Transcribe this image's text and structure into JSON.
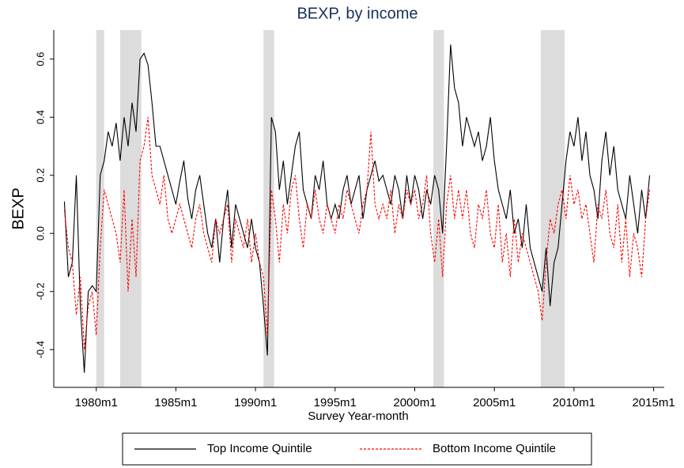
{
  "chart_data": {
    "type": "line",
    "title": "BEXP, by income",
    "x_label": "Survey Year-month",
    "y_label": "BEXP",
    "x": [
      "1978m1",
      "1978m4",
      "1978m7",
      "1978m10",
      "1979m1",
      "1979m4",
      "1979m7",
      "1979m10",
      "1980m1",
      "1980m4",
      "1980m7",
      "1980m10",
      "1981m1",
      "1981m4",
      "1981m7",
      "1981m10",
      "1982m1",
      "1982m4",
      "1982m7",
      "1982m10",
      "1983m1",
      "1983m4",
      "1983m7",
      "1983m10",
      "1984m1",
      "1984m4",
      "1984m7",
      "1984m10",
      "1985m1",
      "1985m4",
      "1985m7",
      "1985m10",
      "1986m1",
      "1986m4",
      "1986m7",
      "1986m10",
      "1987m1",
      "1987m4",
      "1987m7",
      "1987m10",
      "1988m1",
      "1988m4",
      "1988m7",
      "1988m10",
      "1989m1",
      "1989m4",
      "1989m7",
      "1989m10",
      "1990m1",
      "1990m4",
      "1990m7",
      "1990m10",
      "1991m1",
      "1991m4",
      "1991m7",
      "1991m10",
      "1992m1",
      "1992m4",
      "1992m7",
      "1992m10",
      "1993m1",
      "1993m4",
      "1993m7",
      "1993m10",
      "1994m1",
      "1994m4",
      "1994m7",
      "1994m10",
      "1995m1",
      "1995m4",
      "1995m7",
      "1995m10",
      "1996m1",
      "1996m4",
      "1996m7",
      "1996m10",
      "1997m1",
      "1997m4",
      "1997m7",
      "1997m10",
      "1998m1",
      "1998m4",
      "1998m7",
      "1998m10",
      "1999m1",
      "1999m4",
      "1999m7",
      "1999m10",
      "2000m1",
      "2000m4",
      "2000m7",
      "2000m10",
      "2001m1",
      "2001m4",
      "2001m7",
      "2001m10",
      "2002m1",
      "2002m4",
      "2002m7",
      "2002m10",
      "2003m1",
      "2003m4",
      "2003m7",
      "2003m10",
      "2004m1",
      "2004m4",
      "2004m7",
      "2004m10",
      "2005m1",
      "2005m4",
      "2005m7",
      "2005m10",
      "2006m1",
      "2006m4",
      "2006m7",
      "2006m10",
      "2007m1",
      "2007m4",
      "2007m7",
      "2007m10",
      "2008m1",
      "2008m4",
      "2008m7",
      "2008m10",
      "2009m1",
      "2009m4",
      "2009m7",
      "2009m10",
      "2010m1",
      "2010m4",
      "2010m7",
      "2010m10",
      "2011m1",
      "2011m4",
      "2011m7",
      "2011m10",
      "2012m1",
      "2012m4",
      "2012m7",
      "2012m10",
      "2013m1",
      "2013m4",
      "2013m7",
      "2013m10",
      "2014m1",
      "2014m4",
      "2014m7",
      "2014m10"
    ],
    "series": [
      {
        "name": "Top Income Quintile",
        "color": "#000000",
        "dash": "solid",
        "values": [
          0.11,
          -0.15,
          -0.1,
          0.2,
          -0.25,
          -0.48,
          -0.2,
          -0.18,
          -0.2,
          0.2,
          0.25,
          0.35,
          0.3,
          0.38,
          0.25,
          0.4,
          0.3,
          0.45,
          0.35,
          0.6,
          0.62,
          0.58,
          0.45,
          0.3,
          0.3,
          0.25,
          0.2,
          0.15,
          0.1,
          0.18,
          0.25,
          0.12,
          0.05,
          0.15,
          0.2,
          0.1,
          0.0,
          -0.05,
          0.05,
          -0.1,
          0.05,
          0.15,
          -0.05,
          0.1,
          0.05,
          0.0,
          -0.05,
          0.05,
          -0.05,
          -0.1,
          -0.25,
          -0.42,
          0.4,
          0.35,
          0.15,
          0.25,
          0.1,
          0.2,
          0.3,
          0.35,
          0.15,
          0.1,
          0.05,
          0.2,
          0.15,
          0.25,
          0.1,
          0.05,
          0.1,
          0.05,
          0.15,
          0.2,
          0.1,
          0.15,
          0.2,
          0.05,
          0.15,
          0.2,
          0.25,
          0.18,
          0.2,
          0.15,
          0.1,
          0.2,
          0.15,
          0.05,
          0.2,
          0.1,
          0.2,
          0.15,
          0.05,
          0.15,
          0.1,
          0.2,
          0.15,
          0.0,
          0.3,
          0.65,
          0.5,
          0.45,
          0.3,
          0.4,
          0.35,
          0.3,
          0.35,
          0.25,
          0.3,
          0.4,
          0.25,
          0.15,
          0.1,
          0.05,
          0.15,
          0.0,
          0.05,
          -0.05,
          0.1,
          -0.05,
          -0.1,
          -0.15,
          -0.2,
          -0.05,
          -0.25,
          -0.1,
          -0.05,
          0.1,
          0.25,
          0.35,
          0.3,
          0.4,
          0.25,
          0.35,
          0.2,
          0.15,
          0.05,
          0.25,
          0.35,
          0.2,
          0.3,
          0.15,
          0.1,
          0.05,
          0.2,
          0.1,
          0.0,
          0.15,
          0.05,
          0.2
        ]
      },
      {
        "name": "Bottom Income Quintile",
        "color": "#ff0000",
        "dash": "dashed",
        "values": [
          0.08,
          -0.05,
          -0.1,
          -0.28,
          -0.15,
          -0.4,
          -0.25,
          -0.2,
          -0.35,
          -0.05,
          0.15,
          0.1,
          0.05,
          0.0,
          -0.1,
          0.15,
          -0.2,
          0.05,
          -0.15,
          0.25,
          0.3,
          0.4,
          0.2,
          0.15,
          0.1,
          0.2,
          0.05,
          0.0,
          0.05,
          0.1,
          0.05,
          0.0,
          -0.05,
          0.05,
          0.1,
          0.0,
          -0.05,
          -0.1,
          0.05,
          0.0,
          0.05,
          0.1,
          -0.1,
          0.05,
          0.0,
          -0.05,
          0.05,
          -0.1,
          0.0,
          -0.1,
          -0.15,
          -0.35,
          0.15,
          0.05,
          -0.1,
          0.1,
          0.0,
          0.15,
          0.2,
          0.05,
          -0.05,
          0.1,
          0.05,
          0.15,
          0.05,
          0.0,
          0.1,
          0.05,
          0.0,
          0.1,
          0.05,
          0.15,
          0.1,
          0.05,
          0.0,
          0.1,
          0.15,
          0.35,
          0.1,
          0.05,
          0.1,
          0.05,
          0.15,
          0.0,
          0.1,
          0.05,
          0.15,
          0.1,
          0.15,
          0.05,
          0.1,
          0.2,
          0.0,
          -0.1,
          0.05,
          -0.15,
          0.1,
          0.2,
          0.05,
          0.15,
          0.05,
          0.15,
          0.0,
          -0.05,
          0.1,
          0.05,
          0.15,
          0.0,
          -0.05,
          0.1,
          -0.1,
          0.0,
          -0.15,
          0.05,
          -0.1,
          0.0,
          -0.05,
          -0.1,
          -0.15,
          -0.2,
          -0.3,
          -0.1,
          0.05,
          0.0,
          0.1,
          0.15,
          0.05,
          0.2,
          0.1,
          0.15,
          0.05,
          0.1,
          0.0,
          -0.1,
          0.1,
          0.05,
          0.15,
          0.0,
          -0.05,
          0.1,
          -0.1,
          0.05,
          -0.15,
          0.0,
          -0.05,
          -0.15,
          0.05,
          0.15
        ]
      }
    ],
    "shaded_periods": [
      [
        "1980m1",
        "1980m7"
      ],
      [
        "1981m7",
        "1982m11"
      ],
      [
        "1990m7",
        "1991m3"
      ],
      [
        "2001m3",
        "2001m11"
      ],
      [
        "2007m12",
        "2009m6"
      ]
    ],
    "shade_color": "#dcdcdc",
    "xlim": [
      "1977m5",
      "2015m9"
    ],
    "xticks": [
      "1980m1",
      "1985m1",
      "1990m1",
      "1995m1",
      "2000m1",
      "2005m1",
      "2010m1",
      "2015m1"
    ],
    "ylim": [
      -0.53,
      0.7
    ],
    "yticks": [
      0.6,
      0.4,
      0.2,
      {
        "value": 0,
        "label": "0.0"
      },
      -0.2,
      -0.4
    ],
    "grid": false,
    "legend": "bottom"
  }
}
